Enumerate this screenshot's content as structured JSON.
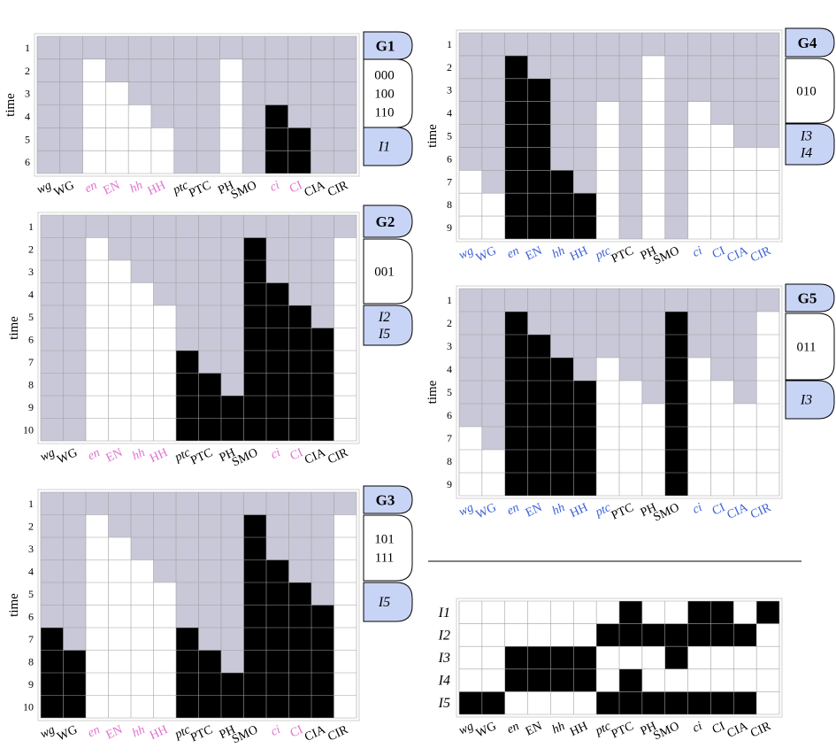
{
  "genes": [
    {
      "label": "wg",
      "italic": true
    },
    {
      "label": "WG",
      "italic": false
    },
    {
      "label": "en",
      "italic": true
    },
    {
      "label": "EN",
      "italic": false
    },
    {
      "label": "hh",
      "italic": true
    },
    {
      "label": "HH",
      "italic": false
    },
    {
      "label": "ptc",
      "italic": true
    },
    {
      "label": "PTC",
      "italic": false
    },
    {
      "label": "PH",
      "italic": false
    },
    {
      "label": "SMO",
      "italic": false
    },
    {
      "label": "ci",
      "italic": true
    },
    {
      "label": "CI",
      "italic": false
    },
    {
      "label": "CIA",
      "italic": false
    },
    {
      "label": "CIR",
      "italic": false
    }
  ],
  "colors": {
    "gray": "#c8c8d8",
    "white": "#ffffff",
    "black": "#000000",
    "grid": "#a0a0a0",
    "tab": "#c8d4f5",
    "pink": "#e070d0",
    "blue": "#3a5fd8",
    "text": "#000000"
  },
  "time_axis_label": "time",
  "chart_data": [
    {
      "type": "heatmap",
      "id": "G1",
      "title": "G1",
      "codes": [
        "000",
        "100",
        "110"
      ],
      "inputs": [
        "I1"
      ],
      "time_steps": [
        1,
        2,
        3,
        4,
        5,
        6
      ],
      "label_colors": [
        "black",
        "black",
        "pink",
        "pink",
        "pink",
        "pink",
        "black",
        "black",
        "black",
        "black",
        "pink",
        "pink",
        "black",
        "black"
      ],
      "columns": [
        {
          "gene": "wg",
          "start": null,
          "end": null,
          "value": null
        },
        {
          "gene": "WG",
          "start": null,
          "end": null,
          "value": null
        },
        {
          "gene": "en",
          "start": 2,
          "end": 6,
          "value": 0
        },
        {
          "gene": "EN",
          "start": 3,
          "end": 6,
          "value": 0
        },
        {
          "gene": "hh",
          "start": 4,
          "end": 6,
          "value": 0
        },
        {
          "gene": "HH",
          "start": 5,
          "end": 6,
          "value": 0
        },
        {
          "gene": "ptc",
          "start": null,
          "end": null,
          "value": null
        },
        {
          "gene": "PTC",
          "start": null,
          "end": null,
          "value": null
        },
        {
          "gene": "PH",
          "start": 2,
          "end": 6,
          "value": 0
        },
        {
          "gene": "SMO",
          "start": null,
          "end": null,
          "value": null
        },
        {
          "gene": "ci",
          "start": 4,
          "end": 6,
          "value": 1
        },
        {
          "gene": "CI",
          "start": 5,
          "end": 6,
          "value": 1
        },
        {
          "gene": "CIA",
          "start": null,
          "end": null,
          "value": null
        },
        {
          "gene": "CIR",
          "start": null,
          "end": null,
          "value": null
        }
      ]
    },
    {
      "type": "heatmap",
      "id": "G2",
      "title": "G2",
      "codes": [
        "001"
      ],
      "inputs": [
        "I2",
        "I5"
      ],
      "time_steps": [
        1,
        2,
        3,
        4,
        5,
        6,
        7,
        8,
        9,
        10
      ],
      "label_colors": [
        "black",
        "black",
        "pink",
        "pink",
        "pink",
        "pink",
        "black",
        "black",
        "black",
        "black",
        "pink",
        "pink",
        "black",
        "black"
      ],
      "columns": [
        {
          "gene": "wg",
          "start": null,
          "end": null,
          "value": null
        },
        {
          "gene": "WG",
          "start": null,
          "end": null,
          "value": null
        },
        {
          "gene": "en",
          "start": 2,
          "end": 10,
          "value": 0
        },
        {
          "gene": "EN",
          "start": 3,
          "end": 10,
          "value": 0
        },
        {
          "gene": "hh",
          "start": 4,
          "end": 10,
          "value": 0
        },
        {
          "gene": "HH",
          "start": 5,
          "end": 10,
          "value": 0
        },
        {
          "gene": "ptc",
          "start": 7,
          "end": 10,
          "value": 1
        },
        {
          "gene": "PTC",
          "start": 8,
          "end": 10,
          "value": 1
        },
        {
          "gene": "PH",
          "start": 9,
          "end": 10,
          "value": 1
        },
        {
          "gene": "SMO",
          "start": 2,
          "end": 10,
          "value": 1
        },
        {
          "gene": "ci",
          "start": 4,
          "end": 10,
          "value": 1
        },
        {
          "gene": "CI",
          "start": 5,
          "end": 10,
          "value": 1
        },
        {
          "gene": "CIA",
          "start": 6,
          "end": 10,
          "value": 1
        },
        {
          "gene": "CIR",
          "start": 2,
          "end": 10,
          "value": 0
        }
      ]
    },
    {
      "type": "heatmap",
      "id": "G3",
      "title": "G3",
      "codes": [
        "101",
        "111"
      ],
      "inputs": [
        "I5"
      ],
      "time_steps": [
        1,
        2,
        3,
        4,
        5,
        6,
        7,
        8,
        9,
        10
      ],
      "label_colors": [
        "black",
        "black",
        "pink",
        "pink",
        "pink",
        "pink",
        "black",
        "black",
        "black",
        "black",
        "pink",
        "pink",
        "black",
        "black"
      ],
      "columns": [
        {
          "gene": "wg",
          "start": 7,
          "end": 10,
          "value": 1
        },
        {
          "gene": "WG",
          "start": 8,
          "end": 10,
          "value": 1
        },
        {
          "gene": "en",
          "start": 2,
          "end": 10,
          "value": 0
        },
        {
          "gene": "EN",
          "start": 3,
          "end": 10,
          "value": 0
        },
        {
          "gene": "hh",
          "start": 4,
          "end": 10,
          "value": 0
        },
        {
          "gene": "HH",
          "start": 5,
          "end": 10,
          "value": 0
        },
        {
          "gene": "ptc",
          "start": 7,
          "end": 10,
          "value": 1
        },
        {
          "gene": "PTC",
          "start": 8,
          "end": 10,
          "value": 1
        },
        {
          "gene": "PH",
          "start": 9,
          "end": 10,
          "value": 1
        },
        {
          "gene": "SMO",
          "start": 2,
          "end": 10,
          "value": 1
        },
        {
          "gene": "ci",
          "start": 4,
          "end": 10,
          "value": 1
        },
        {
          "gene": "CI",
          "start": 5,
          "end": 10,
          "value": 1
        },
        {
          "gene": "CIA",
          "start": 6,
          "end": 10,
          "value": 1
        },
        {
          "gene": "CIR",
          "start": 2,
          "end": 10,
          "value": 0
        }
      ]
    },
    {
      "type": "heatmap",
      "id": "G4",
      "title": "G4",
      "codes": [
        "010"
      ],
      "inputs": [
        "I3",
        "I4"
      ],
      "time_steps": [
        1,
        2,
        3,
        4,
        5,
        6,
        7,
        8,
        9
      ],
      "label_colors": [
        "blue",
        "blue",
        "blue",
        "blue",
        "blue",
        "blue",
        "blue",
        "black",
        "black",
        "black",
        "blue",
        "blue",
        "blue",
        "blue"
      ],
      "columns": [
        {
          "gene": "wg",
          "start": 7,
          "end": 9,
          "value": 0
        },
        {
          "gene": "WG",
          "start": 8,
          "end": 9,
          "value": 0
        },
        {
          "gene": "en",
          "start": 2,
          "end": 9,
          "value": 1
        },
        {
          "gene": "EN",
          "start": 3,
          "end": 9,
          "value": 1
        },
        {
          "gene": "hh",
          "start": 7,
          "end": 9,
          "value": 1
        },
        {
          "gene": "HH",
          "start": 8,
          "end": 9,
          "value": 1
        },
        {
          "gene": "ptc",
          "start": 4,
          "end": 9,
          "value": 0
        },
        {
          "gene": "PTC",
          "start": null,
          "end": null,
          "value": null
        },
        {
          "gene": "PH",
          "start": 2,
          "end": 9,
          "value": 0
        },
        {
          "gene": "SMO",
          "start": null,
          "end": null,
          "value": null
        },
        {
          "gene": "ci",
          "start": 4,
          "end": 9,
          "value": 0
        },
        {
          "gene": "CI",
          "start": 5,
          "end": 9,
          "value": 0
        },
        {
          "gene": "CIA",
          "start": 6,
          "end": 9,
          "value": 0
        },
        {
          "gene": "CIR",
          "start": 6,
          "end": 9,
          "value": 0
        }
      ]
    },
    {
      "type": "heatmap",
      "id": "G5",
      "title": "G5",
      "codes": [
        "011"
      ],
      "inputs": [
        "I3"
      ],
      "time_steps": [
        1,
        2,
        3,
        4,
        5,
        6,
        7,
        8,
        9
      ],
      "label_colors": [
        "blue",
        "blue",
        "blue",
        "blue",
        "blue",
        "blue",
        "blue",
        "black",
        "black",
        "black",
        "blue",
        "blue",
        "blue",
        "blue"
      ],
      "columns": [
        {
          "gene": "wg",
          "start": 7,
          "end": 9,
          "value": 0
        },
        {
          "gene": "WG",
          "start": 8,
          "end": 9,
          "value": 0
        },
        {
          "gene": "en",
          "start": 2,
          "end": 9,
          "value": 1
        },
        {
          "gene": "EN",
          "start": 3,
          "end": 9,
          "value": 1
        },
        {
          "gene": "hh",
          "start": 4,
          "end": 9,
          "value": 1
        },
        {
          "gene": "HH",
          "start": 5,
          "end": 9,
          "value": 1
        },
        {
          "gene": "ptc",
          "start": 4,
          "end": 9,
          "value": 0
        },
        {
          "gene": "PTC",
          "start": 5,
          "end": 9,
          "value": 0
        },
        {
          "gene": "PH",
          "start": 6,
          "end": 9,
          "value": 0
        },
        {
          "gene": "SMO",
          "start": 2,
          "end": 9,
          "value": 1
        },
        {
          "gene": "ci",
          "start": 4,
          "end": 9,
          "value": 0
        },
        {
          "gene": "CI",
          "start": 5,
          "end": 9,
          "value": 0
        },
        {
          "gene": "CIA",
          "start": 6,
          "end": 9,
          "value": 0
        },
        {
          "gene": "CIR",
          "start": 2,
          "end": 9,
          "value": 0
        }
      ]
    },
    {
      "type": "table",
      "id": "inputs-matrix",
      "title": "",
      "rows": [
        {
          "label": "I1",
          "values": [
            0,
            0,
            0,
            0,
            0,
            0,
            0,
            1,
            0,
            0,
            1,
            1,
            0,
            1
          ]
        },
        {
          "label": "I2",
          "values": [
            0,
            0,
            0,
            0,
            0,
            0,
            1,
            1,
            1,
            1,
            1,
            1,
            1,
            0
          ]
        },
        {
          "label": "I3",
          "values": [
            0,
            0,
            1,
            1,
            1,
            1,
            0,
            0,
            0,
            1,
            0,
            0,
            0,
            0
          ]
        },
        {
          "label": "I4",
          "values": [
            0,
            0,
            1,
            1,
            1,
            1,
            0,
            1,
            0,
            0,
            0,
            0,
            0,
            0
          ]
        },
        {
          "label": "I5",
          "values": [
            1,
            1,
            0,
            0,
            0,
            0,
            1,
            1,
            1,
            1,
            1,
            1,
            1,
            0
          ]
        }
      ]
    }
  ]
}
